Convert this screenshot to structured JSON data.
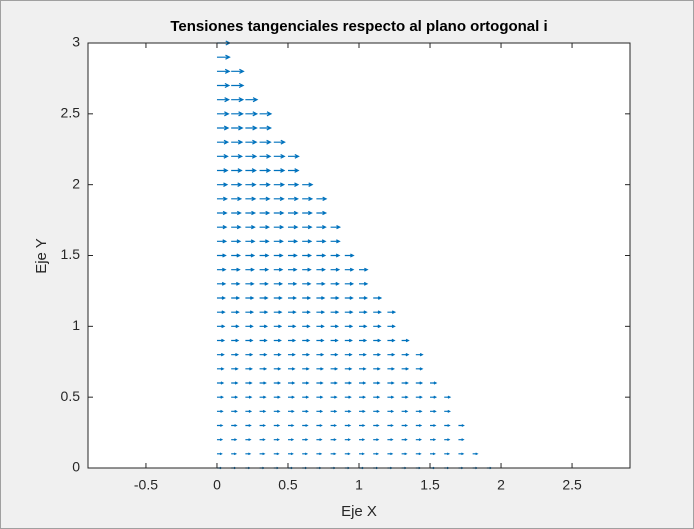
{
  "chart_data": {
    "type": "quiver",
    "title": "Tensiones tangenciales respecto al plano ortogonal i",
    "x_label": "Eje X",
    "y_label": "Eje Y",
    "color": "#0072bd",
    "xlim": [
      -0.908,
      2.908
    ],
    "ylim": [
      0,
      3
    ],
    "xticks": [
      -0.5,
      0,
      0.5,
      1,
      1.5,
      2,
      2.5
    ],
    "yticks": [
      0,
      0.5,
      1,
      1.5,
      2,
      2.5,
      3
    ],
    "rows": [
      {
        "y": 0,
        "u": 0.03,
        "x": [
          0,
          0.1,
          0.2,
          0.3,
          0.4,
          0.5,
          0.6,
          0.7,
          0.8,
          0.9,
          1,
          1.1,
          1.2,
          1.3,
          1.4,
          1.5,
          1.6,
          1.7,
          1.8,
          1.9
        ]
      },
      {
        "y": 0.1,
        "u": 0.032,
        "x": [
          0,
          0.1,
          0.2,
          0.3,
          0.4,
          0.5,
          0.6,
          0.7,
          0.8,
          0.9,
          1,
          1.1,
          1.2,
          1.3,
          1.4,
          1.5,
          1.6,
          1.7,
          1.8
        ]
      },
      {
        "y": 0.2,
        "u": 0.034,
        "x": [
          0,
          0.1,
          0.2,
          0.3,
          0.4,
          0.5,
          0.6,
          0.7,
          0.8,
          0.9,
          1,
          1.1,
          1.2,
          1.3,
          1.4,
          1.5,
          1.6,
          1.7
        ]
      },
      {
        "y": 0.3,
        "u": 0.036,
        "x": [
          0,
          0.1,
          0.2,
          0.3,
          0.4,
          0.5,
          0.6,
          0.7,
          0.8,
          0.9,
          1,
          1.1,
          1.2,
          1.3,
          1.4,
          1.5,
          1.6,
          1.7
        ]
      },
      {
        "y": 0.4,
        "u": 0.038,
        "x": [
          0,
          0.1,
          0.2,
          0.3,
          0.4,
          0.5,
          0.6,
          0.7,
          0.8,
          0.9,
          1,
          1.1,
          1.2,
          1.3,
          1.4,
          1.5,
          1.6
        ]
      },
      {
        "y": 0.5,
        "u": 0.04,
        "x": [
          0,
          0.1,
          0.2,
          0.3,
          0.4,
          0.5,
          0.6,
          0.7,
          0.8,
          0.9,
          1,
          1.1,
          1.2,
          1.3,
          1.4,
          1.5,
          1.6
        ]
      },
      {
        "y": 0.6,
        "u": 0.042,
        "x": [
          0,
          0.1,
          0.2,
          0.3,
          0.4,
          0.5,
          0.6,
          0.7,
          0.8,
          0.9,
          1,
          1.1,
          1.2,
          1.3,
          1.4,
          1.5
        ]
      },
      {
        "y": 0.7,
        "u": 0.044,
        "x": [
          0,
          0.1,
          0.2,
          0.3,
          0.4,
          0.5,
          0.6,
          0.7,
          0.8,
          0.9,
          1,
          1.1,
          1.2,
          1.3,
          1.4
        ]
      },
      {
        "y": 0.8,
        "u": 0.046,
        "x": [
          0,
          0.1,
          0.2,
          0.3,
          0.4,
          0.5,
          0.6,
          0.7,
          0.8,
          0.9,
          1,
          1.1,
          1.2,
          1.3,
          1.4
        ]
      },
      {
        "y": 0.9,
        "u": 0.048,
        "x": [
          0,
          0.1,
          0.2,
          0.3,
          0.4,
          0.5,
          0.6,
          0.7,
          0.8,
          0.9,
          1,
          1.1,
          1.2,
          1.3
        ]
      },
      {
        "y": 1,
        "u": 0.05,
        "x": [
          0,
          0.1,
          0.2,
          0.3,
          0.4,
          0.5,
          0.6,
          0.7,
          0.8,
          0.9,
          1,
          1.1,
          1.2
        ]
      },
      {
        "y": 1.1,
        "u": 0.052,
        "x": [
          0,
          0.1,
          0.2,
          0.3,
          0.4,
          0.5,
          0.6,
          0.7,
          0.8,
          0.9,
          1,
          1.1,
          1.2
        ]
      },
      {
        "y": 1.2,
        "u": 0.054,
        "x": [
          0,
          0.1,
          0.2,
          0.3,
          0.4,
          0.5,
          0.6,
          0.7,
          0.8,
          0.9,
          1,
          1.1
        ]
      },
      {
        "y": 1.3,
        "u": 0.056,
        "x": [
          0,
          0.1,
          0.2,
          0.3,
          0.4,
          0.5,
          0.6,
          0.7,
          0.8,
          0.9,
          1
        ]
      },
      {
        "y": 1.4,
        "u": 0.058,
        "x": [
          0,
          0.1,
          0.2,
          0.3,
          0.4,
          0.5,
          0.6,
          0.7,
          0.8,
          0.9,
          1
        ]
      },
      {
        "y": 1.5,
        "u": 0.06,
        "x": [
          0,
          0.1,
          0.2,
          0.3,
          0.4,
          0.5,
          0.6,
          0.7,
          0.8,
          0.9
        ]
      },
      {
        "y": 1.6,
        "u": 0.062,
        "x": [
          0,
          0.1,
          0.2,
          0.3,
          0.4,
          0.5,
          0.6,
          0.7,
          0.8
        ]
      },
      {
        "y": 1.7,
        "u": 0.064,
        "x": [
          0,
          0.1,
          0.2,
          0.3,
          0.4,
          0.5,
          0.6,
          0.7,
          0.8
        ]
      },
      {
        "y": 1.8,
        "u": 0.066,
        "x": [
          0,
          0.1,
          0.2,
          0.3,
          0.4,
          0.5,
          0.6,
          0.7
        ]
      },
      {
        "y": 1.9,
        "u": 0.068,
        "x": [
          0,
          0.1,
          0.2,
          0.3,
          0.4,
          0.5,
          0.6,
          0.7
        ]
      },
      {
        "y": 2,
        "u": 0.07,
        "x": [
          0,
          0.1,
          0.2,
          0.3,
          0.4,
          0.5,
          0.6
        ]
      },
      {
        "y": 2.1,
        "u": 0.072,
        "x": [
          0,
          0.1,
          0.2,
          0.3,
          0.4,
          0.5
        ]
      },
      {
        "y": 2.2,
        "u": 0.074,
        "x": [
          0,
          0.1,
          0.2,
          0.3,
          0.4,
          0.5
        ]
      },
      {
        "y": 2.3,
        "u": 0.076,
        "x": [
          0,
          0.1,
          0.2,
          0.3,
          0.4
        ]
      },
      {
        "y": 2.4,
        "u": 0.078,
        "x": [
          0,
          0.1,
          0.2,
          0.3
        ]
      },
      {
        "y": 2.5,
        "u": 0.08,
        "x": [
          0,
          0.1,
          0.2,
          0.3
        ]
      },
      {
        "y": 2.6,
        "u": 0.082,
        "x": [
          0,
          0.1,
          0.2
        ]
      },
      {
        "y": 2.7,
        "u": 0.084,
        "x": [
          0,
          0.1
        ]
      },
      {
        "y": 2.8,
        "u": 0.086,
        "x": [
          0,
          0.1
        ]
      },
      {
        "y": 2.9,
        "u": 0.088,
        "x": [
          0
        ]
      },
      {
        "y": 3,
        "u": 0.09,
        "x": [
          0
        ]
      }
    ]
  }
}
